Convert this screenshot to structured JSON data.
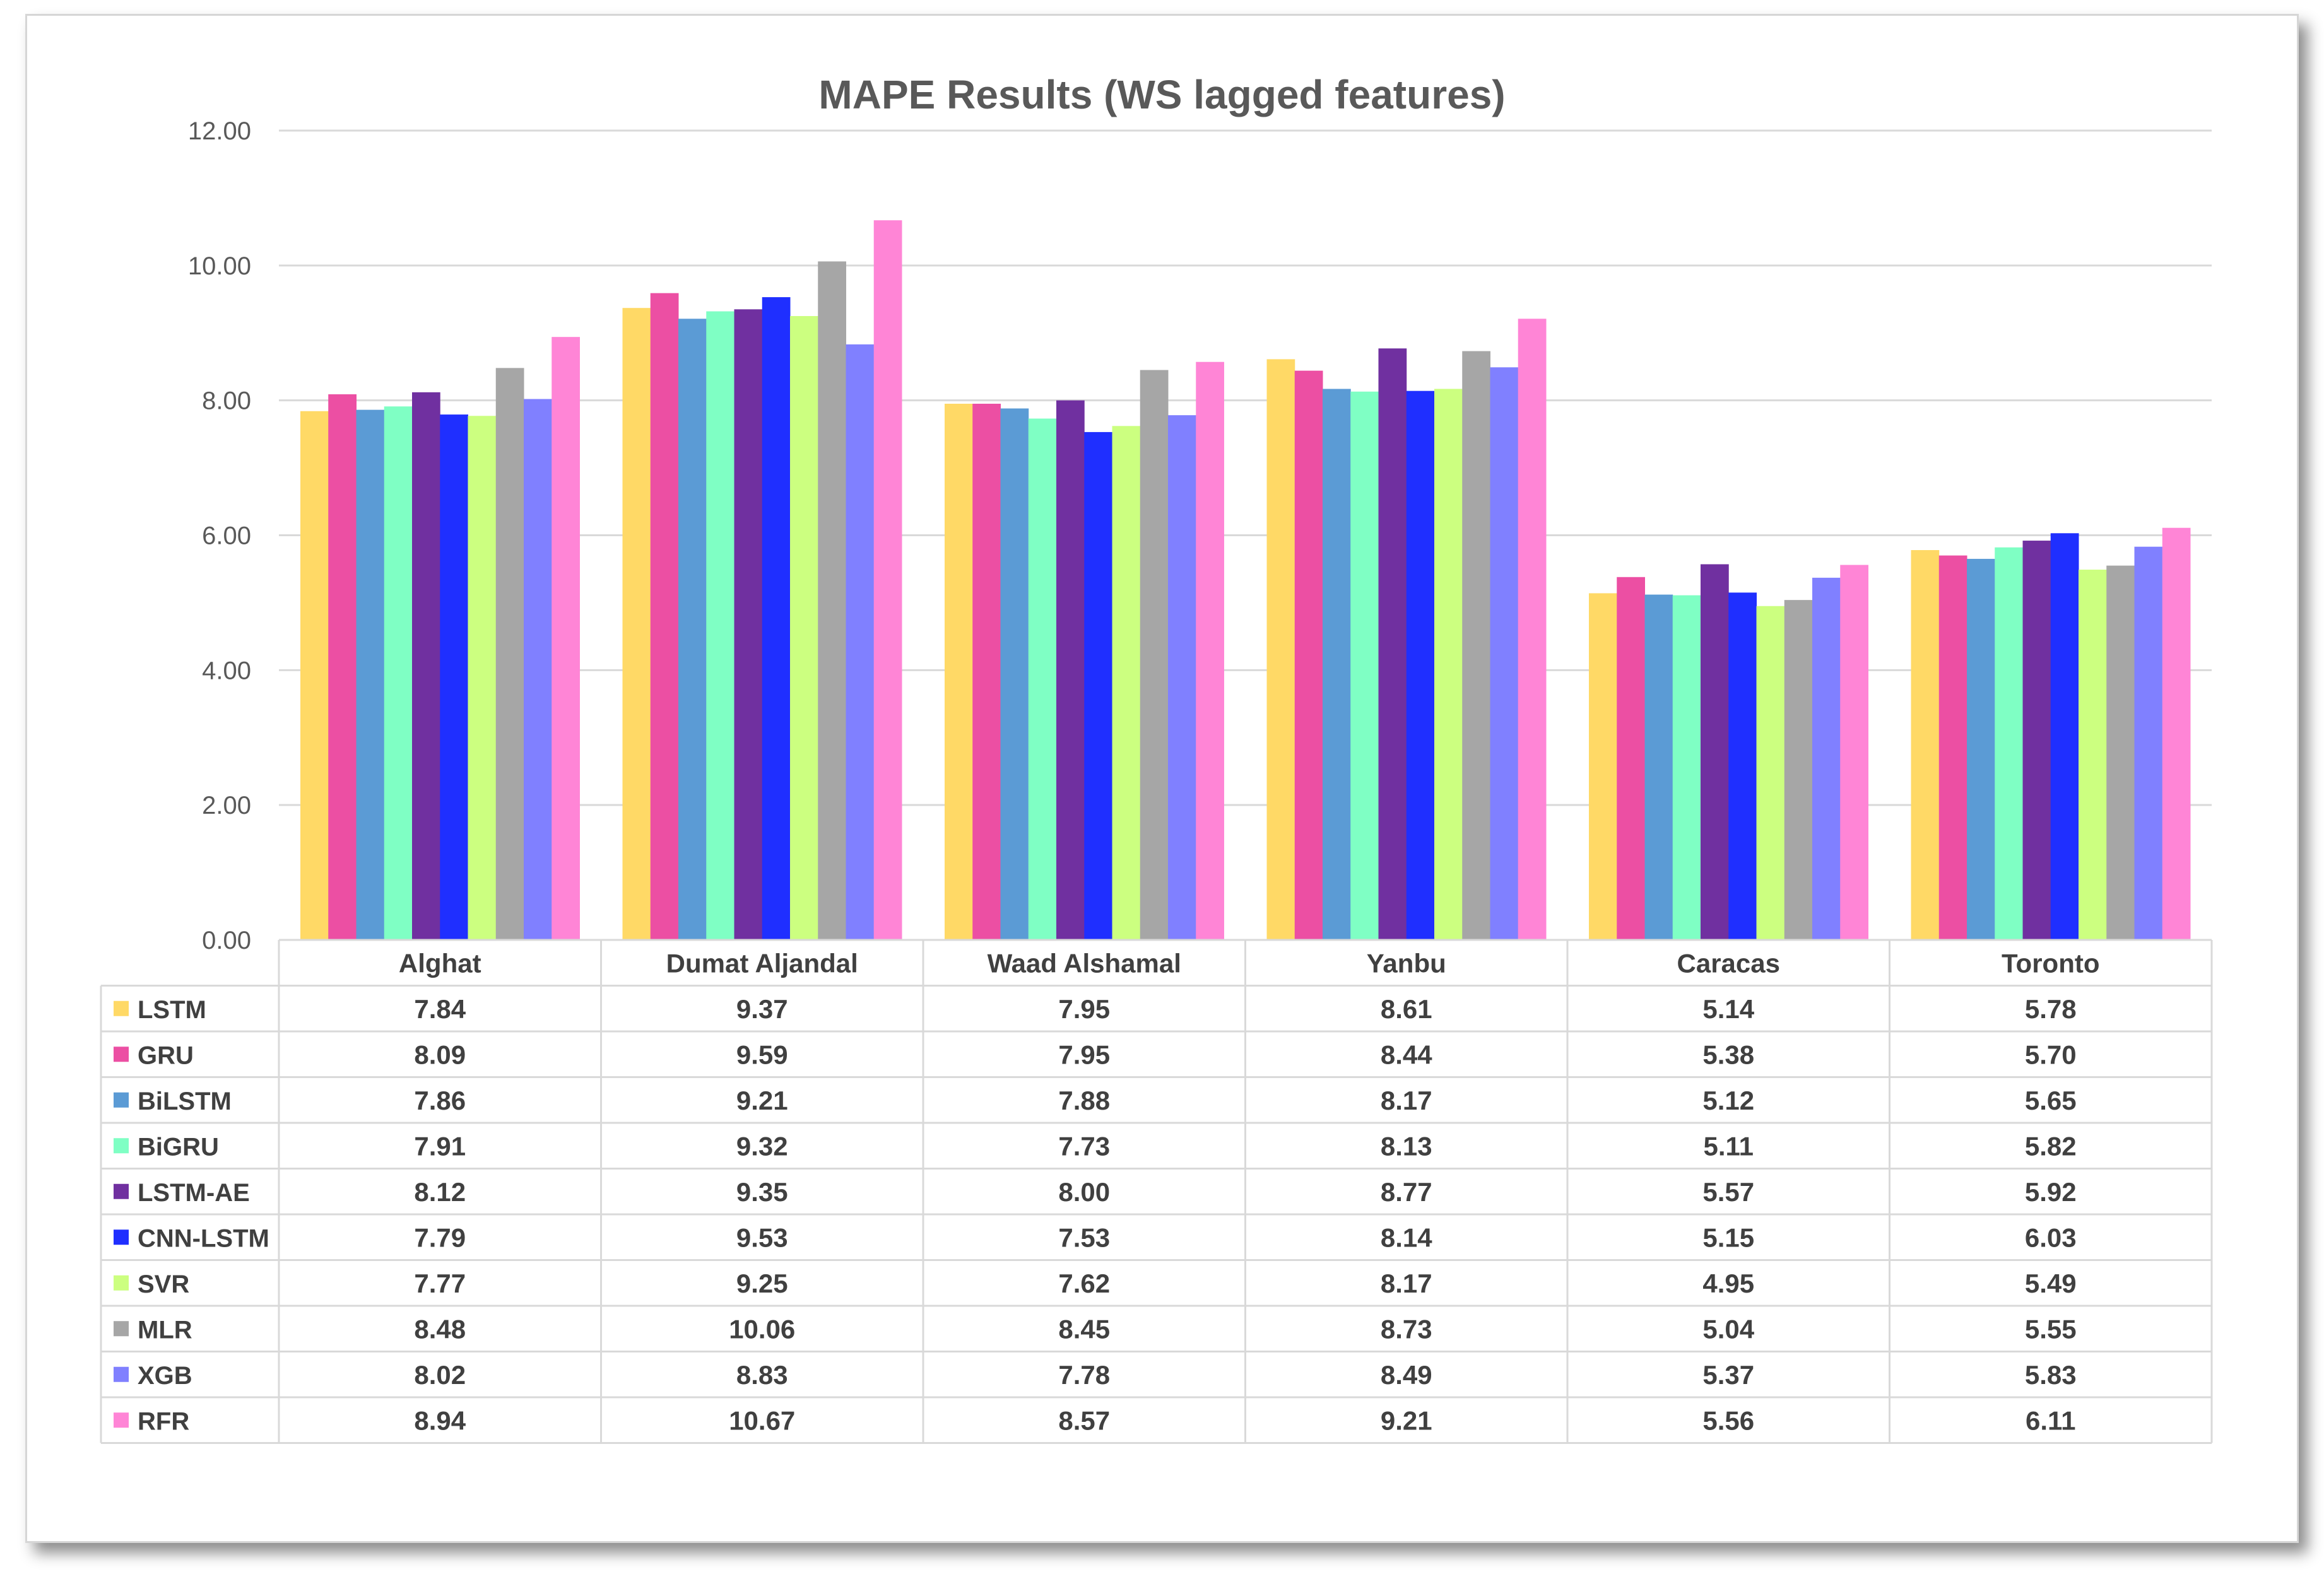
{
  "chart_data": {
    "type": "bar",
    "title": "MAPE Results (WS lagged features)",
    "xlabel": "",
    "ylabel": "",
    "ylim": [
      0,
      12
    ],
    "yticks": [
      "0.00",
      "2.00",
      "4.00",
      "6.00",
      "8.00",
      "10.00",
      "12.00"
    ],
    "grid": true,
    "legend": "data-table",
    "categories": [
      "Alghat",
      "Dumat Aljandal",
      "Waad Alshamal",
      "Yanbu",
      "Caracas",
      "Toronto"
    ],
    "series": [
      {
        "name": "LSTM",
        "color": "#FFD966",
        "values": [
          7.84,
          9.37,
          7.95,
          8.61,
          5.14,
          5.78
        ]
      },
      {
        "name": "GRU",
        "color": "#EC4FA3",
        "values": [
          8.09,
          9.59,
          7.95,
          8.44,
          5.38,
          5.7
        ]
      },
      {
        "name": "BiLSTM",
        "color": "#5B9BD5",
        "values": [
          7.86,
          9.21,
          7.88,
          8.17,
          5.12,
          5.65
        ]
      },
      {
        "name": "BiGRU",
        "color": "#7FFFC4",
        "values": [
          7.91,
          9.32,
          7.73,
          8.13,
          5.11,
          5.82
        ]
      },
      {
        "name": "LSTM-AE",
        "color": "#7030A0",
        "values": [
          8.12,
          9.35,
          8.0,
          8.77,
          5.57,
          5.92
        ]
      },
      {
        "name": "CNN-LSTM",
        "color": "#1F2FFF",
        "values": [
          7.79,
          9.53,
          7.53,
          8.14,
          5.15,
          6.03
        ]
      },
      {
        "name": "SVR",
        "color": "#CCFF80",
        "values": [
          7.77,
          9.25,
          7.62,
          8.17,
          4.95,
          5.49
        ]
      },
      {
        "name": "MLR",
        "color": "#A6A6A6",
        "values": [
          8.48,
          10.06,
          8.45,
          8.73,
          5.04,
          5.55
        ]
      },
      {
        "name": "XGB",
        "color": "#8080FF",
        "values": [
          8.02,
          8.83,
          7.78,
          8.49,
          5.37,
          5.83
        ]
      },
      {
        "name": "RFR",
        "color": "#FF85D6",
        "values": [
          8.94,
          10.67,
          8.57,
          9.21,
          5.56,
          6.11
        ]
      }
    ]
  }
}
